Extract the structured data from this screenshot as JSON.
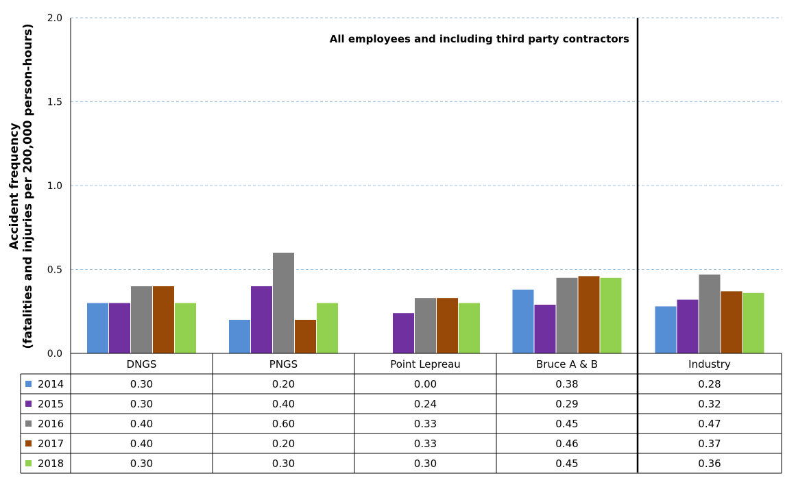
{
  "chart_data": {
    "type": "bar",
    "ylabel_line1": "Accident frequency",
    "ylabel_line2": "(fatalities and injuries per 200,000 person-hours)",
    "annotation": "All employees and including third party contractors",
    "ylim": [
      0,
      2.0
    ],
    "yticks": [
      "0.0",
      "0.5",
      "1.0",
      "1.5",
      "2.0"
    ],
    "grid": true,
    "categories": [
      "DNGS",
      "PNGS",
      "Point Lepreau",
      "Bruce A & B",
      "Industry"
    ],
    "series": [
      {
        "name": "2014",
        "color": "#558ED5",
        "values": [
          0.3,
          0.2,
          0.0,
          0.38,
          0.28
        ],
        "labels": [
          "0.30",
          "0.20",
          "0.00",
          "0.38",
          "0.28"
        ]
      },
      {
        "name": "2015",
        "color": "#7030A0",
        "values": [
          0.3,
          0.4,
          0.24,
          0.29,
          0.32
        ],
        "labels": [
          "0.30",
          "0.40",
          "0.24",
          "0.29",
          "0.32"
        ]
      },
      {
        "name": "2016",
        "color": "#7F7F7F",
        "values": [
          0.4,
          0.6,
          0.33,
          0.45,
          0.47
        ],
        "labels": [
          "0.40",
          "0.60",
          "0.33",
          "0.45",
          "0.47"
        ]
      },
      {
        "name": "2017",
        "color": "#984807",
        "values": [
          0.4,
          0.2,
          0.33,
          0.46,
          0.37
        ],
        "labels": [
          "0.40",
          "0.20",
          "0.33",
          "0.46",
          "0.37"
        ]
      },
      {
        "name": "2018",
        "color": "#92D050",
        "values": [
          0.3,
          0.3,
          0.3,
          0.45,
          0.36
        ],
        "labels": [
          "0.30",
          "0.30",
          "0.30",
          "0.45",
          "0.36"
        ]
      }
    ]
  }
}
